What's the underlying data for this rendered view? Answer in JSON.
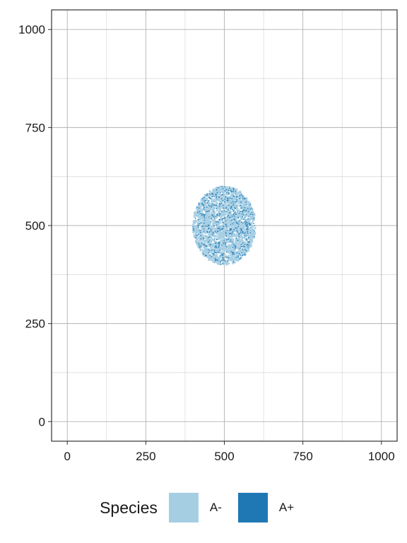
{
  "chart_data": {
    "type": "scatter",
    "title": "",
    "xlabel": "",
    "ylabel": "",
    "xlim": [
      -50,
      1050
    ],
    "ylim": [
      -50,
      1050
    ],
    "x_ticks": [
      0,
      250,
      500,
      750,
      1000
    ],
    "y_ticks": [
      0,
      250,
      500,
      750,
      1000
    ],
    "grid": true,
    "legend_position": "bottom",
    "legend_title": "Species",
    "series": [
      {
        "name": "A-",
        "color": "#a6cee3",
        "cluster": {
          "center": [
            500,
            500
          ],
          "radius_x": 100,
          "radius_y": 100,
          "approx_points": 1800
        }
      },
      {
        "name": "A+",
        "color": "#1f78b4",
        "cluster": {
          "center": [
            500,
            500
          ],
          "radius_x": 100,
          "radius_y": 100,
          "approx_points": 500
        }
      }
    ]
  }
}
